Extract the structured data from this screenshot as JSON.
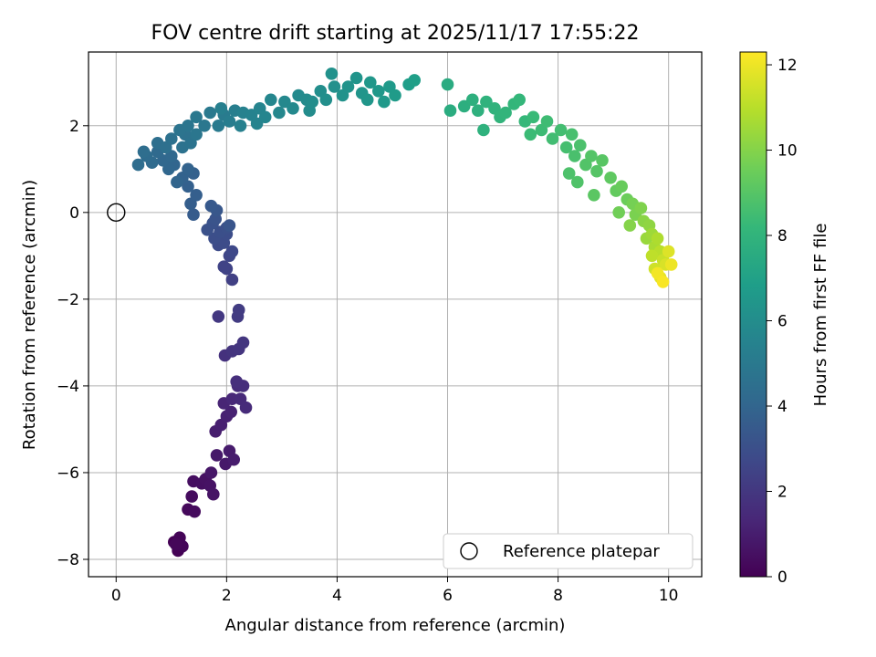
{
  "chart_data": {
    "type": "scatter",
    "title": "FOV centre drift starting at 2025/11/17 17:55:22",
    "xlabel": "Angular distance from reference (arcmin)",
    "ylabel": "Rotation from reference (arcmin)",
    "xlim": [
      -0.5,
      10.6
    ],
    "ylim": [
      -8.4,
      3.7
    ],
    "xticks": [
      0,
      2,
      4,
      6,
      8,
      10
    ],
    "yticks": [
      -8,
      -6,
      -4,
      -2,
      0,
      2
    ],
    "grid": true,
    "legend": {
      "position": "lower-right",
      "label": "Reference platepar"
    },
    "reference_point": {
      "x": 0,
      "y": 0
    },
    "colorbar": {
      "label": "Hours from first FF file",
      "colormap": "viridis",
      "range": [
        0,
        12.3
      ],
      "ticks": [
        0,
        2,
        4,
        6,
        8,
        10,
        12
      ]
    },
    "colors": {
      "viridis": [
        "#440154",
        "#482878",
        "#3e4989",
        "#31688e",
        "#26828e",
        "#1f9e89",
        "#35b779",
        "#6ece58",
        "#b5de2b",
        "#fde725"
      ],
      "grid": "#b0b0b0",
      "axes": "#000000"
    },
    "series": [
      {
        "name": "FOV centre",
        "points": [
          [
            1.05,
            -7.6,
            0.0
          ],
          [
            1.12,
            -7.8,
            0.05
          ],
          [
            1.15,
            -7.5,
            0.1
          ],
          [
            1.2,
            -7.7,
            0.15
          ],
          [
            1.08,
            -7.65,
            0.2
          ],
          [
            1.3,
            -6.85,
            0.28
          ],
          [
            1.42,
            -6.9,
            0.33
          ],
          [
            1.37,
            -6.55,
            0.38
          ],
          [
            1.4,
            -6.2,
            0.45
          ],
          [
            1.55,
            -6.25,
            0.5
          ],
          [
            1.62,
            -6.15,
            0.55
          ],
          [
            1.7,
            -6.3,
            0.6
          ],
          [
            1.76,
            -6.5,
            0.65
          ],
          [
            1.72,
            -6.0,
            0.72
          ],
          [
            1.82,
            -5.6,
            0.8
          ],
          [
            1.98,
            -5.8,
            0.85
          ],
          [
            2.05,
            -5.5,
            0.9
          ],
          [
            2.13,
            -5.7,
            0.95
          ],
          [
            1.8,
            -5.05,
            1.0
          ],
          [
            1.9,
            -4.9,
            1.05
          ],
          [
            2.0,
            -4.7,
            1.1
          ],
          [
            2.08,
            -4.6,
            1.15
          ],
          [
            1.95,
            -4.4,
            1.25
          ],
          [
            2.1,
            -4.3,
            1.35
          ],
          [
            2.25,
            -4.3,
            1.45
          ],
          [
            2.35,
            -4.5,
            1.5
          ],
          [
            2.2,
            -4.0,
            1.55
          ],
          [
            2.3,
            -4.0,
            1.6
          ],
          [
            2.18,
            -3.9,
            1.65
          ],
          [
            1.97,
            -3.3,
            1.75
          ],
          [
            2.1,
            -3.2,
            1.85
          ],
          [
            2.22,
            -3.15,
            1.9
          ],
          [
            2.3,
            -3.0,
            1.95
          ],
          [
            1.85,
            -2.4,
            2.05
          ],
          [
            2.2,
            -2.4,
            2.15
          ],
          [
            2.22,
            -2.25,
            2.2
          ],
          [
            2.1,
            -1.55,
            2.35
          ],
          [
            2.0,
            -1.3,
            2.45
          ],
          [
            1.95,
            -1.25,
            2.5
          ],
          [
            2.05,
            -1.0,
            2.6
          ],
          [
            2.1,
            -0.9,
            2.7
          ],
          [
            1.85,
            -0.75,
            2.8
          ],
          [
            1.95,
            -0.7,
            2.85
          ],
          [
            2.0,
            -0.5,
            2.9
          ],
          [
            1.78,
            -0.6,
            2.95
          ],
          [
            1.88,
            -0.45,
            3.0
          ],
          [
            2.0,
            -0.35,
            3.05
          ],
          [
            1.65,
            -0.4,
            3.1
          ],
          [
            1.75,
            -0.25,
            3.15
          ],
          [
            1.8,
            -0.15,
            3.2
          ],
          [
            2.05,
            -0.3,
            3.25
          ],
          [
            1.82,
            0.05,
            3.35
          ],
          [
            1.72,
            0.15,
            3.45
          ],
          [
            1.4,
            -0.05,
            3.55
          ],
          [
            1.35,
            0.2,
            3.65
          ],
          [
            1.45,
            0.4,
            3.7
          ],
          [
            1.3,
            0.6,
            3.75
          ],
          [
            1.4,
            0.9,
            3.8
          ],
          [
            1.2,
            0.8,
            3.85
          ],
          [
            1.3,
            1.0,
            3.9
          ],
          [
            1.1,
            0.7,
            3.95
          ],
          [
            1.05,
            1.1,
            4.0
          ],
          [
            0.95,
            1.0,
            4.05
          ],
          [
            0.85,
            1.2,
            4.1
          ],
          [
            1.0,
            1.3,
            4.15
          ],
          [
            0.75,
            1.4,
            4.2
          ],
          [
            0.65,
            1.15,
            4.25
          ],
          [
            0.55,
            1.3,
            4.3
          ],
          [
            0.4,
            1.1,
            4.35
          ],
          [
            0.5,
            1.4,
            4.4
          ],
          [
            0.75,
            1.6,
            4.45
          ],
          [
            0.9,
            1.5,
            4.5
          ],
          [
            1.0,
            1.7,
            4.55
          ],
          [
            1.2,
            1.5,
            4.6
          ],
          [
            1.25,
            1.8,
            4.65
          ],
          [
            1.35,
            1.6,
            4.7
          ],
          [
            1.15,
            1.9,
            4.75
          ],
          [
            1.3,
            2.0,
            4.8
          ],
          [
            1.45,
            1.8,
            4.85
          ],
          [
            1.6,
            2.0,
            4.9
          ],
          [
            1.45,
            2.2,
            4.95
          ],
          [
            1.7,
            2.3,
            5.0
          ],
          [
            1.85,
            2.0,
            5.05
          ],
          [
            1.95,
            2.25,
            5.1
          ],
          [
            2.05,
            2.1,
            5.2
          ],
          [
            2.15,
            2.35,
            5.25
          ],
          [
            1.9,
            2.4,
            5.3
          ],
          [
            2.25,
            2.0,
            5.35
          ],
          [
            2.3,
            2.3,
            5.4
          ],
          [
            2.45,
            2.25,
            5.45
          ],
          [
            2.55,
            2.05,
            5.5
          ],
          [
            2.6,
            2.4,
            5.55
          ],
          [
            2.7,
            2.2,
            5.6
          ],
          [
            2.8,
            2.6,
            5.65
          ],
          [
            2.95,
            2.3,
            5.7
          ],
          [
            3.05,
            2.55,
            5.75
          ],
          [
            3.2,
            2.4,
            5.8
          ],
          [
            3.3,
            2.7,
            5.85
          ],
          [
            3.45,
            2.6,
            5.9
          ],
          [
            3.5,
            2.35,
            5.95
          ],
          [
            3.55,
            2.55,
            6.0
          ],
          [
            3.7,
            2.8,
            6.05
          ],
          [
            3.8,
            2.6,
            6.1
          ],
          [
            3.95,
            2.9,
            6.15
          ],
          [
            3.9,
            3.2,
            6.2
          ],
          [
            4.1,
            2.7,
            6.25
          ],
          [
            4.2,
            2.9,
            6.3
          ],
          [
            4.35,
            3.1,
            6.35
          ],
          [
            4.45,
            2.75,
            6.4
          ],
          [
            4.55,
            2.6,
            6.45
          ],
          [
            4.6,
            3.0,
            6.5
          ],
          [
            4.75,
            2.8,
            6.55
          ],
          [
            4.85,
            2.55,
            6.6
          ],
          [
            4.95,
            2.9,
            6.65
          ],
          [
            5.05,
            2.7,
            6.7
          ],
          [
            5.3,
            2.95,
            6.85
          ],
          [
            5.4,
            3.05,
            6.9
          ],
          [
            6.0,
            2.95,
            7.55
          ],
          [
            6.05,
            2.35,
            7.6
          ],
          [
            6.3,
            2.45,
            7.7
          ],
          [
            6.45,
            2.6,
            7.75
          ],
          [
            6.55,
            2.35,
            7.8
          ],
          [
            6.65,
            1.9,
            7.85
          ],
          [
            6.7,
            2.55,
            7.9
          ],
          [
            6.85,
            2.4,
            7.95
          ],
          [
            6.95,
            2.2,
            8.0
          ],
          [
            7.05,
            2.3,
            8.05
          ],
          [
            7.2,
            2.5,
            8.1
          ],
          [
            7.3,
            2.6,
            8.15
          ],
          [
            7.4,
            2.1,
            8.2
          ],
          [
            7.55,
            2.2,
            8.3
          ],
          [
            7.5,
            1.8,
            8.35
          ],
          [
            7.7,
            1.9,
            8.4
          ],
          [
            7.8,
            2.1,
            8.45
          ],
          [
            7.9,
            1.7,
            8.5
          ],
          [
            8.05,
            1.9,
            8.55
          ],
          [
            8.15,
            1.5,
            8.6
          ],
          [
            8.25,
            1.8,
            8.65
          ],
          [
            8.3,
            1.3,
            8.7
          ],
          [
            8.4,
            1.55,
            8.75
          ],
          [
            8.2,
            0.9,
            8.8
          ],
          [
            8.35,
            0.7,
            8.85
          ],
          [
            8.5,
            1.1,
            8.9
          ],
          [
            8.6,
            1.3,
            8.95
          ],
          [
            8.7,
            0.95,
            9.0
          ],
          [
            8.8,
            1.2,
            9.05
          ],
          [
            8.65,
            0.4,
            9.1
          ],
          [
            8.95,
            0.8,
            9.2
          ],
          [
            9.05,
            0.5,
            9.3
          ],
          [
            9.15,
            0.6,
            9.4
          ],
          [
            9.25,
            0.3,
            9.5
          ],
          [
            9.1,
            0.0,
            9.6
          ],
          [
            9.35,
            0.2,
            9.7
          ],
          [
            9.4,
            -0.05,
            9.8
          ],
          [
            9.5,
            0.1,
            9.9
          ],
          [
            9.3,
            -0.3,
            10.0
          ],
          [
            9.55,
            -0.2,
            10.1
          ],
          [
            9.65,
            -0.3,
            10.2
          ],
          [
            9.6,
            -0.6,
            10.4
          ],
          [
            9.7,
            -0.5,
            10.5
          ],
          [
            9.75,
            -0.8,
            10.7
          ],
          [
            9.8,
            -0.6,
            10.8
          ],
          [
            9.85,
            -0.9,
            11.0
          ],
          [
            9.7,
            -1.0,
            11.1
          ],
          [
            9.9,
            -1.1,
            11.3
          ],
          [
            9.75,
            -1.3,
            11.4
          ],
          [
            9.95,
            -1.2,
            11.6
          ],
          [
            10.0,
            -0.9,
            11.7
          ],
          [
            9.85,
            -1.5,
            11.8
          ],
          [
            10.05,
            -1.2,
            12.0
          ],
          [
            9.8,
            -1.4,
            12.1
          ],
          [
            9.9,
            -1.6,
            12.2
          ]
        ]
      }
    ]
  }
}
